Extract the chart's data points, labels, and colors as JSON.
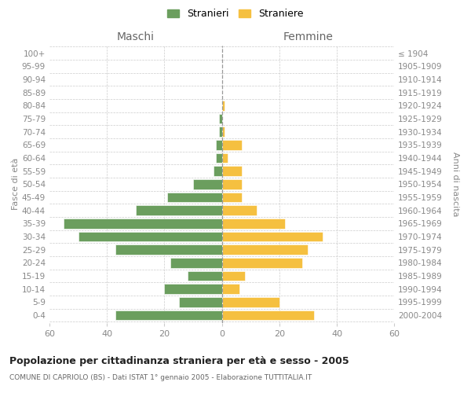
{
  "age_groups": [
    "0-4",
    "5-9",
    "10-14",
    "15-19",
    "20-24",
    "25-29",
    "30-34",
    "35-39",
    "40-44",
    "45-49",
    "50-54",
    "55-59",
    "60-64",
    "65-69",
    "70-74",
    "75-79",
    "80-84",
    "85-89",
    "90-94",
    "95-99",
    "100+"
  ],
  "birth_years": [
    "2000-2004",
    "1995-1999",
    "1990-1994",
    "1985-1989",
    "1980-1984",
    "1975-1979",
    "1970-1974",
    "1965-1969",
    "1960-1964",
    "1955-1959",
    "1950-1954",
    "1945-1949",
    "1940-1944",
    "1935-1939",
    "1930-1934",
    "1925-1929",
    "1920-1924",
    "1915-1919",
    "1910-1914",
    "1905-1909",
    "≤ 1904"
  ],
  "maschi": [
    37,
    15,
    20,
    12,
    18,
    37,
    50,
    55,
    30,
    19,
    10,
    3,
    2,
    2,
    1,
    1,
    0,
    0,
    0,
    0,
    0
  ],
  "femmine": [
    32,
    20,
    6,
    8,
    28,
    30,
    35,
    22,
    12,
    7,
    7,
    7,
    2,
    7,
    1,
    0,
    1,
    0,
    0,
    0,
    0
  ],
  "maschi_color": "#6b9e5e",
  "femmine_color": "#f5c040",
  "xlim": 60,
  "title": "Popolazione per cittadinanza straniera per età e sesso - 2005",
  "subtitle": "COMUNE DI CAPRIOLO (BS) - Dati ISTAT 1° gennaio 2005 - Elaborazione TUTTITALIA.IT",
  "ylabel_left": "Fasce di età",
  "ylabel_right": "Anni di nascita",
  "label_maschi": "Maschi",
  "label_femmine": "Femmine",
  "legend_maschi": "Stranieri",
  "legend_femmine": "Straniere",
  "background_color": "#ffffff",
  "grid_color": "#cccccc",
  "text_color": "#888888"
}
